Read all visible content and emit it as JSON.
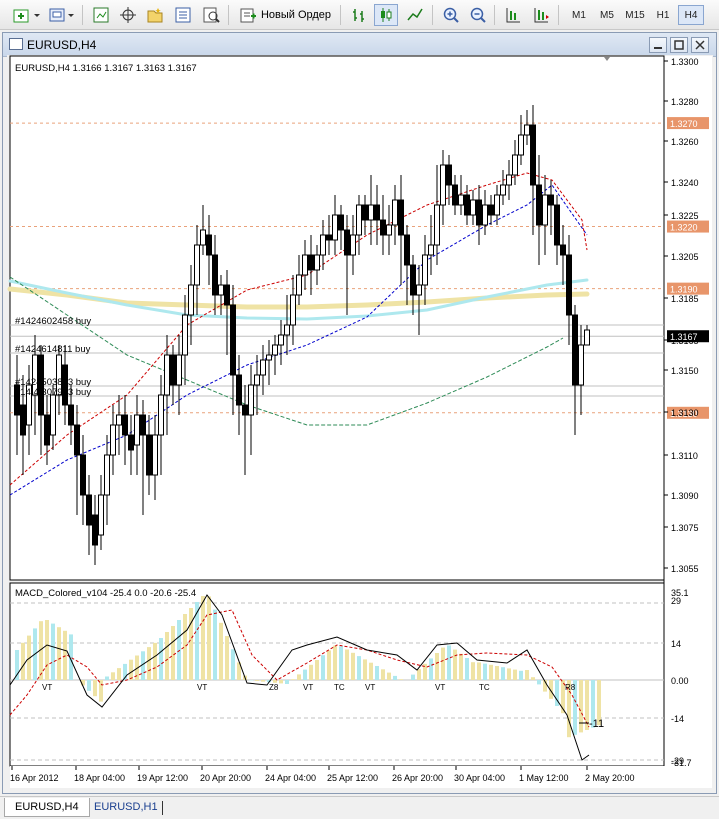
{
  "toolbar": {
    "new_order_label": "Новый Ордер",
    "timeframes": [
      "M1",
      "M5",
      "M15",
      "H1",
      "H4"
    ],
    "active_timeframe": "H4"
  },
  "window": {
    "title": "EURUSD,H4"
  },
  "chart": {
    "info": "EURUSD,H4  1.3166 1.3167 1.3163 1.3167",
    "current_price": "1.3167",
    "price_ticks": [
      "1.3300",
      "1.3280",
      "1.3260",
      "1.3240",
      "1.3225",
      "1.3205",
      "1.3185",
      "1.3165",
      "1.3150",
      "1.3130",
      "1.3110",
      "1.3090",
      "1.3075",
      "1.3055"
    ],
    "level_labels": [
      "1.3270",
      "1.3220",
      "1.3190",
      "1.3130"
    ],
    "orders": [
      "#1424602458 buy",
      "#1424614811 buy",
      "#1424503863 buy",
      "#14 4 307993 buy"
    ],
    "date_ticks": [
      "16 Apr 2012",
      "18 Apr 04:00",
      "19 Apr 12:00",
      "20 Apr 20:00",
      "24 Apr 04:00",
      "25 Apr 12:00",
      "26 Apr 20:00",
      "30 Apr 04:00",
      "1 May 12:00",
      "2 May 20:00"
    ],
    "colors": {
      "background": "#ffffff",
      "up_candle": "#ffffff",
      "down_candle": "#000000",
      "level_line": "#e9a27b",
      "level_label_bg": "#e8956a",
      "ma_fast": "#cc0000",
      "ma_mid": "#0000cc",
      "ma_slow": "#2e8b57",
      "band_cyan": "#aee8ee",
      "band_khaki": "#efe3a5"
    }
  },
  "macd": {
    "title": "MACD_Colored_v104 -25.4 0.0 -20.6 -25.4",
    "ticks": [
      "35.1",
      "29",
      "14",
      "0.00",
      "-14",
      "-29",
      "-31.7"
    ],
    "signals": [
      "VT",
      "VT",
      "Z8",
      "VT",
      "TC",
      "VT",
      "VT",
      "TC",
      "R8"
    ],
    "annotation": "-11",
    "colors": {
      "bar_khaki": "#efe3a5",
      "bar_cyan": "#aee8ee",
      "macd_line": "#000000",
      "signal_line": "#cc0000"
    }
  },
  "tabs": [
    "EURUSD,H4",
    "EURUSD,H1"
  ]
}
